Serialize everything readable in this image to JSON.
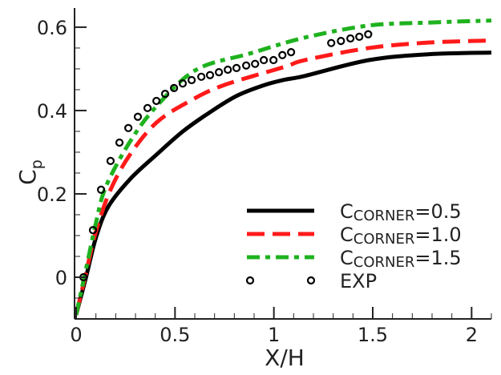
{
  "chart_data": {
    "type": "line",
    "xlabel": "X/H",
    "ylabel_main": "C",
    "ylabel_sub": "p",
    "xlim": [
      0,
      2.1
    ],
    "ylim": [
      -0.1,
      0.646
    ],
    "xticks": [
      0,
      0.5,
      1,
      1.5,
      2
    ],
    "xtick_labels": [
      "0",
      "0.5",
      "1",
      "1.5",
      "2"
    ],
    "x_minor_step": 0.1,
    "yticks": [
      0,
      0.2,
      0.4,
      0.6
    ],
    "ytick_labels": [
      "0",
      "0.2",
      "0.4",
      "0.6"
    ],
    "y_minor_step": 0.05,
    "grid": false,
    "legend_position": "bottom-right",
    "series": [
      {
        "name_main": "C",
        "name_sub": "CORNER",
        "name_value": "=0.5",
        "style": "solid",
        "color": "#000000",
        "points": [
          [
            0,
            -0.09
          ],
          [
            0.05,
            0.0
          ],
          [
            0.1,
            0.095
          ],
          [
            0.162,
            0.169
          ],
          [
            0.272,
            0.235
          ],
          [
            0.406,
            0.294
          ],
          [
            0.54,
            0.35
          ],
          [
            0.677,
            0.396
          ],
          [
            0.811,
            0.435
          ],
          [
            0.945,
            0.46
          ],
          [
            1.055,
            0.474
          ],
          [
            1.156,
            0.483
          ],
          [
            1.48,
            0.521
          ],
          [
            1.78,
            0.535
          ],
          [
            2.1,
            0.539
          ]
        ]
      },
      {
        "name_main": "C",
        "name_sub": "CORNER",
        "name_value": "=1.0",
        "style": "dashed",
        "color": "#ff1a1a",
        "points": [
          [
            0,
            -0.09
          ],
          [
            0.05,
            0.01
          ],
          [
            0.1,
            0.11
          ],
          [
            0.174,
            0.21
          ],
          [
            0.272,
            0.294
          ],
          [
            0.406,
            0.371
          ],
          [
            0.568,
            0.421
          ],
          [
            0.742,
            0.46
          ],
          [
            1.055,
            0.505
          ],
          [
            1.156,
            0.521
          ],
          [
            1.48,
            0.55
          ],
          [
            1.78,
            0.563
          ],
          [
            2.1,
            0.568
          ]
        ]
      },
      {
        "name_main": "C",
        "name_sub": "CORNER",
        "name_value": "=1.5",
        "style": "dash-dot",
        "color": "#1fb21f",
        "points": [
          [
            0,
            -0.09
          ],
          [
            0.05,
            0.02
          ],
          [
            0.1,
            0.13
          ],
          [
            0.15,
            0.217
          ],
          [
            0.272,
            0.325
          ],
          [
            0.406,
            0.41
          ],
          [
            0.608,
            0.498
          ],
          [
            0.88,
            0.537
          ],
          [
            1.156,
            0.575
          ],
          [
            1.48,
            0.604
          ],
          [
            1.78,
            0.611
          ],
          [
            2.1,
            0.616
          ]
        ]
      },
      {
        "name": "EXP",
        "style": "markers",
        "color": "#000000",
        "points": [
          [
            0.037,
            0.0
          ],
          [
            0.085,
            0.113
          ],
          [
            0.126,
            0.21
          ],
          [
            0.174,
            0.279
          ],
          [
            0.219,
            0.323
          ],
          [
            0.264,
            0.358
          ],
          [
            0.312,
            0.385
          ],
          [
            0.361,
            0.406
          ],
          [
            0.406,
            0.423
          ],
          [
            0.45,
            0.44
          ],
          [
            0.495,
            0.454
          ],
          [
            0.539,
            0.465
          ],
          [
            0.584,
            0.473
          ],
          [
            0.633,
            0.481
          ],
          [
            0.677,
            0.485
          ],
          [
            0.722,
            0.492
          ],
          [
            0.767,
            0.498
          ],
          [
            0.811,
            0.502
          ],
          [
            0.86,
            0.508
          ],
          [
            0.905,
            0.512
          ],
          [
            0.949,
            0.521
          ],
          [
            0.998,
            0.521
          ],
          [
            1.043,
            0.533
          ],
          [
            1.087,
            0.54
          ],
          [
            1.29,
            0.562
          ],
          [
            1.339,
            0.567
          ],
          [
            1.387,
            0.573
          ],
          [
            1.432,
            0.577
          ],
          [
            1.477,
            0.583
          ]
        ]
      }
    ]
  }
}
